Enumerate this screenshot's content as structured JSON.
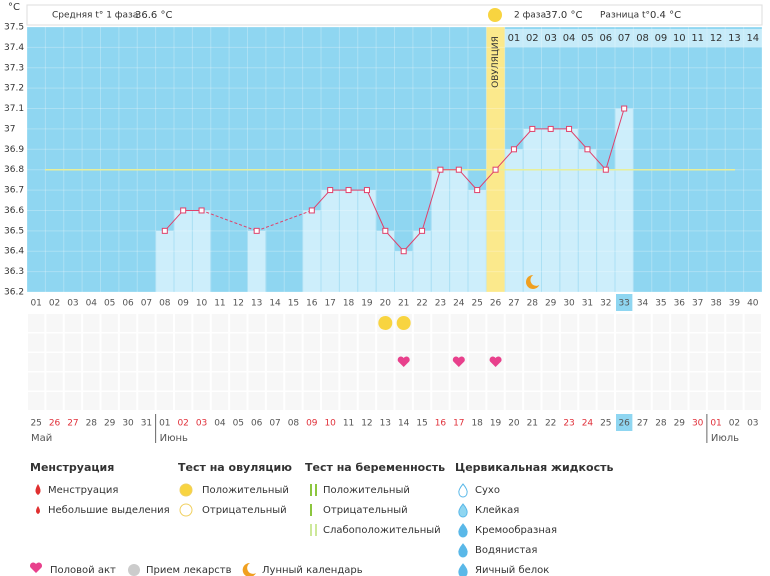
{
  "header": {
    "phase1_label": "Средняя t° 1 фаза",
    "phase1_value": "36.6 °C",
    "phase2_label": "2 фаза",
    "phase2_value": "37.0 °C",
    "diff_label": "Разница t°",
    "diff_value": "0.4 °C"
  },
  "chart_data": {
    "type": "line",
    "y_unit": "°C",
    "categories": [
      "01",
      "02",
      "03",
      "04",
      "05",
      "06",
      "07",
      "08",
      "09",
      "10",
      "11",
      "12",
      "13",
      "14",
      "15",
      "16",
      "17",
      "18",
      "19",
      "20",
      "21",
      "22",
      "23",
      "24",
      "25",
      "26",
      "27",
      "28",
      "29",
      "30",
      "31",
      "32",
      "33",
      "34",
      "35",
      "36",
      "37",
      "38",
      "39",
      "40"
    ],
    "values": [
      null,
      null,
      null,
      null,
      null,
      null,
      null,
      36.5,
      36.6,
      36.6,
      null,
      null,
      36.5,
      null,
      null,
      36.6,
      36.7,
      36.7,
      36.7,
      36.5,
      36.4,
      36.5,
      36.8,
      36.8,
      36.7,
      36.8,
      36.9,
      37.0,
      37.0,
      37.0,
      36.9,
      36.8,
      37.1,
      null,
      null,
      null,
      null,
      null,
      null,
      null
    ],
    "ylim": [
      36.2,
      37.5
    ],
    "yticks": [
      36.2,
      36.3,
      36.4,
      36.5,
      36.6,
      36.7,
      36.8,
      36.9,
      37,
      37.1,
      37.2,
      37.3,
      37.4,
      37.5
    ],
    "coverline": 36.8,
    "line_color": "#e0406a",
    "bar_color": "#cdeefb",
    "background_color": "#8fd6f1",
    "coverline_color": "#e8ef9a",
    "ovulation": {
      "label": "ОВУЛЯЦИЯ",
      "category": "26",
      "color": "#fbe98c"
    },
    "post_ovulation_days": [
      "01",
      "02",
      "03",
      "04",
      "05",
      "06",
      "07",
      "08",
      "09",
      "10",
      "11",
      "12",
      "13",
      "14"
    ],
    "today": "33",
    "dates": [
      "25",
      "26",
      "27",
      "28",
      "29",
      "30",
      "31",
      "01",
      "02",
      "03",
      "04",
      "05",
      "06",
      "07",
      "08",
      "09",
      "10",
      "11",
      "12",
      "13",
      "14",
      "15",
      "16",
      "17",
      "18",
      "19",
      "20",
      "21",
      "22",
      "23",
      "24",
      "25",
      "26",
      "27",
      "28",
      "29",
      "30",
      "01",
      "02",
      "03"
    ],
    "date_weekend": [
      false,
      true,
      true,
      false,
      false,
      false,
      false,
      false,
      true,
      true,
      false,
      false,
      false,
      false,
      false,
      true,
      true,
      false,
      false,
      false,
      false,
      false,
      true,
      true,
      false,
      false,
      false,
      false,
      false,
      true,
      true,
      false,
      false,
      false,
      false,
      false,
      true,
      true,
      false,
      false
    ],
    "weekend_color": "#e0303a",
    "months": [
      {
        "label": "Май",
        "category": "01"
      },
      {
        "label": "Июнь",
        "category": "08"
      },
      {
        "label": "Июль",
        "category": "38"
      }
    ],
    "ovulation_test_positive": [
      "20",
      "21"
    ],
    "intercourse": [
      "21",
      "24",
      "26"
    ],
    "lunar": [
      "28"
    ]
  },
  "legend": {
    "sections": [
      {
        "title": "Менструация",
        "items": [
          "Менструация",
          "Небольшие выделения"
        ]
      },
      {
        "title": "Тест на овуляцию",
        "items": [
          "Положительный",
          "Отрицательный"
        ]
      },
      {
        "title": "Тест на беременность",
        "items": [
          "Положительный",
          "Отрицательный",
          "Слабоположительный"
        ]
      },
      {
        "title": "Цервикальная жидкость",
        "items": [
          "Сухо",
          "Клейкая",
          "Кремообразная",
          "Водянистая",
          "Яичный белок"
        ]
      }
    ],
    "bottom": [
      "Половой акт",
      "Прием лекарств",
      "Лунный календарь"
    ]
  }
}
